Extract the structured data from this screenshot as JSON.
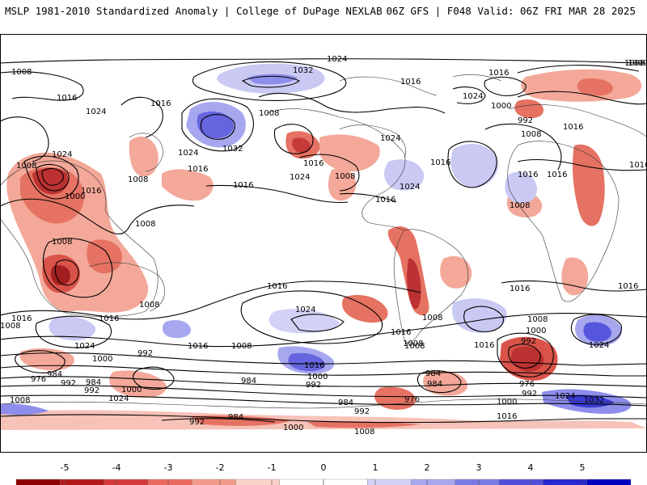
{
  "header": {
    "left": "MSLP 1981-2010 Standardized Anomaly | College of DuPage NEXLAB",
    "right": "06Z GFS | F048 Valid: 06Z FRI MAR 28 2025"
  },
  "colorbar": {
    "ticks": [
      "-5",
      "-4",
      "-3",
      "-2",
      "-1",
      "0",
      "1",
      "2",
      "3",
      "4",
      "5"
    ],
    "colors": [
      "#8b0000",
      "#b41a1a",
      "#d63a3a",
      "#ea6a5f",
      "#f39a8a",
      "#fbd2c8",
      "#ffffff",
      "#ffffff",
      "#d2d2f6",
      "#a7a7ef",
      "#7b7be5",
      "#5050dc",
      "#2828d0",
      "#0000c0"
    ]
  },
  "contour_labels": [
    "1024",
    "1008",
    "1032",
    "1016",
    "1024",
    "1016",
    "1000",
    "992",
    "1008",
    "1016",
    "1024",
    "1016",
    "1008",
    "1024",
    "1016",
    "1008",
    "1016",
    "1016",
    "1024",
    "1000",
    "1032",
    "1024",
    "1016",
    "1016",
    "1016",
    "1008",
    "1008",
    "1024",
    "1008",
    "1016",
    "1024",
    "1008",
    "1016",
    "1016",
    "1016",
    "1008",
    "1008",
    "1016",
    "1016",
    "1008",
    "1024",
    "1016",
    "1008",
    "1016",
    "1016",
    "1008",
    "1024",
    "1016",
    "1008",
    "1000",
    "1016",
    "1024",
    "1008",
    "992",
    "1016",
    "1016",
    "1000",
    "1000",
    "992",
    "1008",
    "992",
    "992",
    "976",
    "984",
    "984",
    "992",
    "984",
    "1000",
    "1008",
    "1024",
    "984",
    "992",
    "984",
    "1000",
    "976",
    "992",
    "976",
    "984",
    "992",
    "1000",
    "1016",
    "1032",
    "1024",
    "984",
    "1008",
    "1000",
    "1008"
  ]
}
